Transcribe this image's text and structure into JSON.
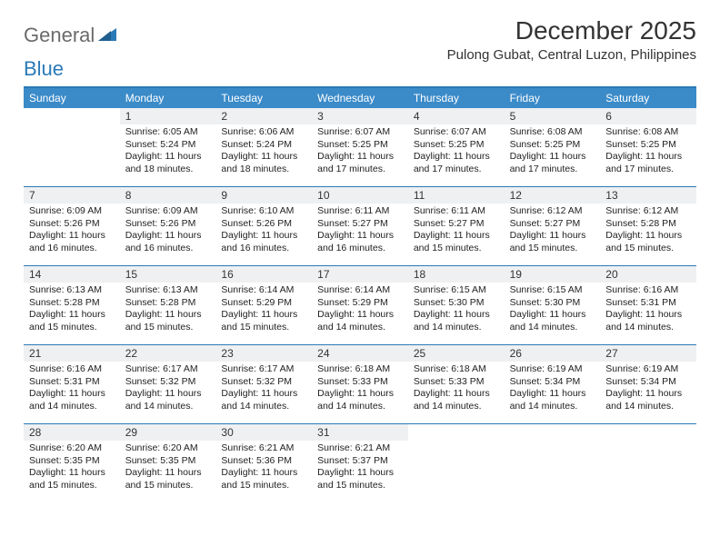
{
  "brand": {
    "part1": "General",
    "part2": "Blue"
  },
  "title": "December 2025",
  "location": "Pulong Gubat, Central Luzon, Philippines",
  "colors": {
    "header_bar": "#3b8bc9",
    "rule": "#2a7ab8",
    "daynum_bg": "#eef0f2",
    "text": "#222222",
    "logo_gray": "#6b6b6b",
    "logo_blue": "#2a7ab8"
  },
  "days_of_week": [
    "Sunday",
    "Monday",
    "Tuesday",
    "Wednesday",
    "Thursday",
    "Friday",
    "Saturday"
  ],
  "weeks": [
    [
      null,
      {
        "n": "1",
        "sr": "6:05 AM",
        "ss": "5:24 PM",
        "dl": "11 hours and 18 minutes."
      },
      {
        "n": "2",
        "sr": "6:06 AM",
        "ss": "5:24 PM",
        "dl": "11 hours and 18 minutes."
      },
      {
        "n": "3",
        "sr": "6:07 AM",
        "ss": "5:25 PM",
        "dl": "11 hours and 17 minutes."
      },
      {
        "n": "4",
        "sr": "6:07 AM",
        "ss": "5:25 PM",
        "dl": "11 hours and 17 minutes."
      },
      {
        "n": "5",
        "sr": "6:08 AM",
        "ss": "5:25 PM",
        "dl": "11 hours and 17 minutes."
      },
      {
        "n": "6",
        "sr": "6:08 AM",
        "ss": "5:25 PM",
        "dl": "11 hours and 17 minutes."
      }
    ],
    [
      {
        "n": "7",
        "sr": "6:09 AM",
        "ss": "5:26 PM",
        "dl": "11 hours and 16 minutes."
      },
      {
        "n": "8",
        "sr": "6:09 AM",
        "ss": "5:26 PM",
        "dl": "11 hours and 16 minutes."
      },
      {
        "n": "9",
        "sr": "6:10 AM",
        "ss": "5:26 PM",
        "dl": "11 hours and 16 minutes."
      },
      {
        "n": "10",
        "sr": "6:11 AM",
        "ss": "5:27 PM",
        "dl": "11 hours and 16 minutes."
      },
      {
        "n": "11",
        "sr": "6:11 AM",
        "ss": "5:27 PM",
        "dl": "11 hours and 15 minutes."
      },
      {
        "n": "12",
        "sr": "6:12 AM",
        "ss": "5:27 PM",
        "dl": "11 hours and 15 minutes."
      },
      {
        "n": "13",
        "sr": "6:12 AM",
        "ss": "5:28 PM",
        "dl": "11 hours and 15 minutes."
      }
    ],
    [
      {
        "n": "14",
        "sr": "6:13 AM",
        "ss": "5:28 PM",
        "dl": "11 hours and 15 minutes."
      },
      {
        "n": "15",
        "sr": "6:13 AM",
        "ss": "5:28 PM",
        "dl": "11 hours and 15 minutes."
      },
      {
        "n": "16",
        "sr": "6:14 AM",
        "ss": "5:29 PM",
        "dl": "11 hours and 15 minutes."
      },
      {
        "n": "17",
        "sr": "6:14 AM",
        "ss": "5:29 PM",
        "dl": "11 hours and 14 minutes."
      },
      {
        "n": "18",
        "sr": "6:15 AM",
        "ss": "5:30 PM",
        "dl": "11 hours and 14 minutes."
      },
      {
        "n": "19",
        "sr": "6:15 AM",
        "ss": "5:30 PM",
        "dl": "11 hours and 14 minutes."
      },
      {
        "n": "20",
        "sr": "6:16 AM",
        "ss": "5:31 PM",
        "dl": "11 hours and 14 minutes."
      }
    ],
    [
      {
        "n": "21",
        "sr": "6:16 AM",
        "ss": "5:31 PM",
        "dl": "11 hours and 14 minutes."
      },
      {
        "n": "22",
        "sr": "6:17 AM",
        "ss": "5:32 PM",
        "dl": "11 hours and 14 minutes."
      },
      {
        "n": "23",
        "sr": "6:17 AM",
        "ss": "5:32 PM",
        "dl": "11 hours and 14 minutes."
      },
      {
        "n": "24",
        "sr": "6:18 AM",
        "ss": "5:33 PM",
        "dl": "11 hours and 14 minutes."
      },
      {
        "n": "25",
        "sr": "6:18 AM",
        "ss": "5:33 PM",
        "dl": "11 hours and 14 minutes."
      },
      {
        "n": "26",
        "sr": "6:19 AM",
        "ss": "5:34 PM",
        "dl": "11 hours and 14 minutes."
      },
      {
        "n": "27",
        "sr": "6:19 AM",
        "ss": "5:34 PM",
        "dl": "11 hours and 14 minutes."
      }
    ],
    [
      {
        "n": "28",
        "sr": "6:20 AM",
        "ss": "5:35 PM",
        "dl": "11 hours and 15 minutes."
      },
      {
        "n": "29",
        "sr": "6:20 AM",
        "ss": "5:35 PM",
        "dl": "11 hours and 15 minutes."
      },
      {
        "n": "30",
        "sr": "6:21 AM",
        "ss": "5:36 PM",
        "dl": "11 hours and 15 minutes."
      },
      {
        "n": "31",
        "sr": "6:21 AM",
        "ss": "5:37 PM",
        "dl": "11 hours and 15 minutes."
      },
      null,
      null,
      null
    ]
  ],
  "labels": {
    "sunrise": "Sunrise:",
    "sunset": "Sunset:",
    "daylight": "Daylight:"
  }
}
